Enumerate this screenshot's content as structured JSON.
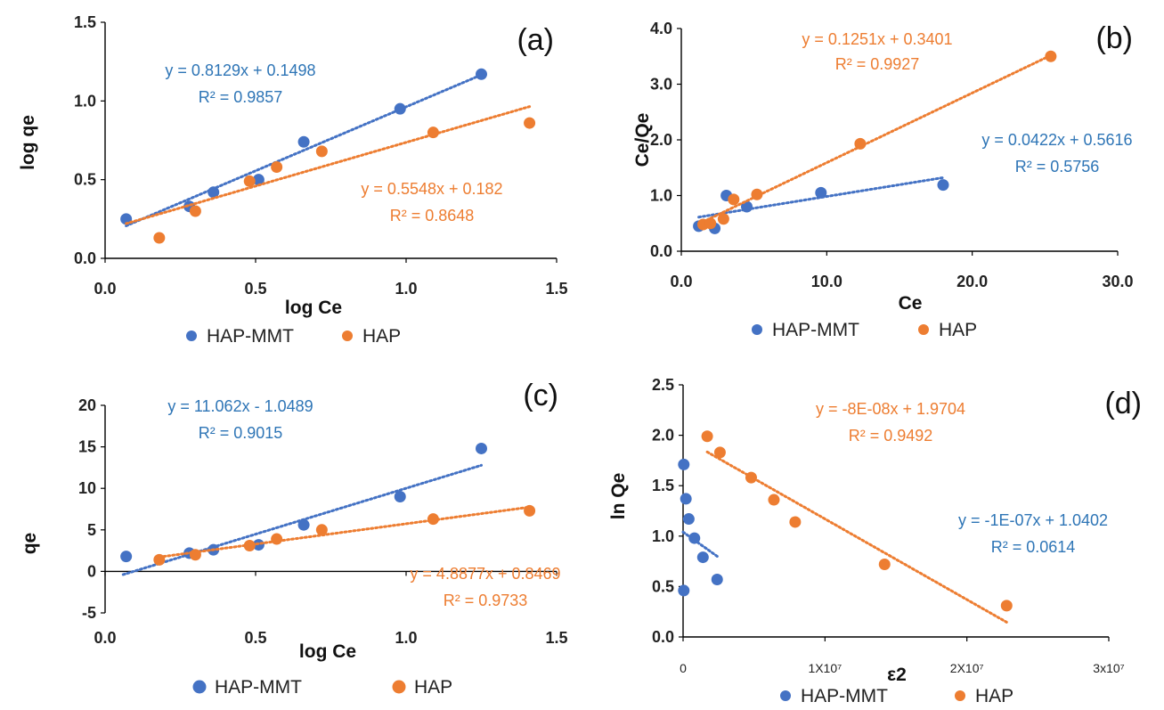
{
  "colors": {
    "hap_mmt": "#4472C4",
    "hap": "#ED7D31",
    "eq_blue": "#2E75B6",
    "eq_orange": "#ED7D31",
    "axis": "#000000"
  },
  "chart_data": [
    {
      "panel": "(a)",
      "type": "scatter",
      "xlabel": "log Ce",
      "ylabel": "log qe",
      "xlim": [
        0,
        1.5
      ],
      "ylim": [
        0,
        1.5
      ],
      "xticks": [
        "0.0",
        "0.5",
        "1.0",
        "1.5"
      ],
      "yticks": [
        "0.0",
        "0.5",
        "1.0",
        "1.5"
      ],
      "series": [
        {
          "name": "HAP-MMT",
          "x": [
            0.07,
            0.28,
            0.36,
            0.51,
            0.66,
            0.98,
            1.25
          ],
          "y": [
            0.25,
            0.33,
            0.42,
            0.5,
            0.74,
            0.95,
            1.17
          ],
          "trend": {
            "slope": 0.8129,
            "intercept": 0.1498,
            "x_range": [
              0.07,
              1.25
            ]
          },
          "equation": "y = 0.8129x + 0.1498",
          "r2": "R² = 0.9857"
        },
        {
          "name": "HAP",
          "x": [
            0.18,
            0.3,
            0.48,
            0.57,
            0.72,
            1.09,
            1.41
          ],
          "y": [
            0.13,
            0.3,
            0.49,
            0.58,
            0.68,
            0.8,
            0.86
          ],
          "trend": {
            "slope": 0.5548,
            "intercept": 0.182,
            "x_range": [
              0.07,
              1.41
            ]
          },
          "equation": "y = 0.5548x + 0.182",
          "r2": "R² = 0.8648"
        }
      ],
      "legend": [
        "HAP-MMT",
        "HAP"
      ]
    },
    {
      "panel": "(b)",
      "type": "scatter",
      "xlabel": "Ce",
      "ylabel": "Ce/Qe",
      "xlim": [
        0,
        30
      ],
      "ylim": [
        0,
        4
      ],
      "xticks": [
        "0.0",
        "10.0",
        "20.0",
        "30.0"
      ],
      "yticks": [
        "0.0",
        "1.0",
        "2.0",
        "3.0",
        "4.0"
      ],
      "series": [
        {
          "name": "HAP-MMT",
          "x": [
            1.2,
            2.3,
            3.1,
            4.5,
            9.6,
            18.0
          ],
          "y": [
            0.45,
            0.41,
            1.0,
            0.8,
            1.05,
            1.19
          ],
          "trend": {
            "slope": 0.0422,
            "intercept": 0.5616,
            "x_range": [
              1.2,
              18.0
            ]
          },
          "equation": "y = 0.0422x + 0.5616",
          "r2": "R² = 0.5756"
        },
        {
          "name": "HAP",
          "x": [
            1.5,
            2.0,
            2.9,
            3.6,
            5.2,
            12.3,
            25.4
          ],
          "y": [
            0.48,
            0.5,
            0.58,
            0.93,
            1.02,
            1.93,
            3.5
          ],
          "trend": {
            "slope": 0.1251,
            "intercept": 0.3401,
            "x_range": [
              1.2,
              25.4
            ]
          },
          "equation": "y = 0.1251x + 0.3401",
          "r2": "R² = 0.9927"
        }
      ],
      "legend": [
        "HAP-MMT",
        "HAP"
      ]
    },
    {
      "panel": "(c)",
      "type": "scatter",
      "xlabel": "log Ce",
      "ylabel": "qe",
      "xlim": [
        0,
        1.5
      ],
      "ylim": [
        -5,
        20
      ],
      "xticks": [
        "0.0",
        "0.5",
        "1.0",
        "1.5"
      ],
      "yticks": [
        "-5",
        "0",
        "5",
        "10",
        "15",
        "20"
      ],
      "series": [
        {
          "name": "HAP-MMT",
          "x": [
            0.07,
            0.28,
            0.36,
            0.51,
            0.66,
            0.98,
            1.25
          ],
          "y": [
            1.8,
            2.2,
            2.6,
            3.2,
            5.6,
            9.0,
            14.8
          ],
          "trend": {
            "slope": 11.062,
            "intercept": -1.0489,
            "x_range": [
              0.06,
              1.25
            ]
          },
          "equation": "y = 11.062x - 1.0489",
          "r2": "R² = 0.9015"
        },
        {
          "name": "HAP",
          "x": [
            0.18,
            0.3,
            0.48,
            0.57,
            0.72,
            1.09,
            1.41
          ],
          "y": [
            1.4,
            2.0,
            3.1,
            3.9,
            5.0,
            6.3,
            7.3
          ],
          "trend": {
            "slope": 4.8877,
            "intercept": 0.8469,
            "x_range": [
              0.18,
              1.41
            ]
          },
          "equation": "y = 4.8877x + 0.8469",
          "r2": "R² = 0.9733"
        }
      ],
      "legend": [
        "HAP-MMT",
        "HAP"
      ]
    },
    {
      "panel": "(d)",
      "type": "scatter",
      "xlabel": "ε2",
      "ylabel": "ln Qe",
      "xlim": [
        0,
        30000000
      ],
      "ylim": [
        0,
        2.5
      ],
      "xticks": [
        "0",
        "1X10⁷",
        "2X10⁷",
        "3x10⁷"
      ],
      "yticks": [
        "0.0",
        "0.5",
        "1.0",
        "1.5",
        "2.0",
        "2.5"
      ],
      "series": [
        {
          "name": "HAP-MMT",
          "x": [
            50000,
            200000,
            400000,
            800000,
            1400000,
            2400000,
            50000
          ],
          "y": [
            1.71,
            1.37,
            1.17,
            0.98,
            0.79,
            0.57,
            0.46
          ],
          "trend": {
            "slope": -1e-07,
            "intercept": 1.0402,
            "x_range": [
              0,
              2500000
            ]
          },
          "equation": "y = -1E-07x + 1.0402",
          "r2": "R² = 0.0614"
        },
        {
          "name": "HAP",
          "x": [
            1700000,
            2600000,
            4800000,
            6400000,
            7900000,
            14200000,
            22800000
          ],
          "y": [
            1.99,
            1.83,
            1.58,
            1.36,
            1.14,
            0.72,
            0.31
          ],
          "trend": {
            "slope": -8e-08,
            "intercept": 1.9704,
            "x_range": [
              1700000,
              22800000
            ]
          },
          "equation": "y = -8E-08x + 1.9704",
          "r2": "R² = 0.9492"
        }
      ],
      "legend": [
        "HAP-MMT",
        "HAP"
      ]
    }
  ]
}
